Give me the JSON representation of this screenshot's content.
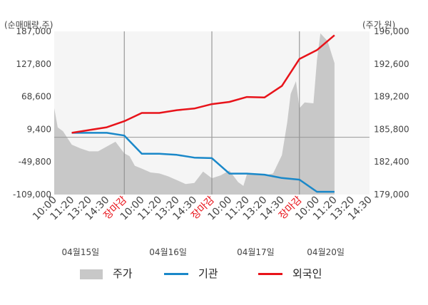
{
  "chart_data": {
    "type": "line",
    "unit_left": "(순매매량,주)",
    "unit_right": "(주가,원)",
    "left_axis": {
      "min": -109000,
      "max": 187000,
      "ticks": [
        "187,000",
        "127,800",
        "68,600",
        "9,400",
        "-49,800",
        "-109,000"
      ]
    },
    "right_axis": {
      "min": 179000,
      "max": 196000,
      "ticks": [
        "196,000",
        "192,600",
        "189,200",
        "185,800",
        "182,400",
        "179,000"
      ]
    },
    "x_ticks": [
      {
        "label": "10:00",
        "red": false
      },
      {
        "label": "11:20",
        "red": false
      },
      {
        "label": "13:20",
        "red": false
      },
      {
        "label": "14:30",
        "red": false
      },
      {
        "label": "장마감",
        "red": true
      },
      {
        "label": "10:00",
        "red": false
      },
      {
        "label": "11:20",
        "red": false
      },
      {
        "label": "13:20",
        "red": false
      },
      {
        "label": "14:30",
        "red": false
      },
      {
        "label": "장마감",
        "red": true
      },
      {
        "label": "10:00",
        "red": false
      },
      {
        "label": "11:20",
        "red": false
      },
      {
        "label": "13:20",
        "red": false
      },
      {
        "label": "14:30",
        "red": false
      },
      {
        "label": "장마감",
        "red": true
      },
      {
        "label": "10:00",
        "red": false
      },
      {
        "label": "11:20",
        "red": false
      },
      {
        "label": "13:20",
        "red": false
      },
      {
        "label": "14:30",
        "red": false
      }
    ],
    "day_labels": [
      {
        "label": "04월15일",
        "index": 1.5
      },
      {
        "label": "04월16일",
        "index": 6.5
      },
      {
        "label": "04월17일",
        "index": 11.5
      },
      {
        "label": "04월20일",
        "index": 15.5
      }
    ],
    "series": [
      {
        "name": "기관",
        "color": "#1a88c9",
        "axis": "left",
        "points": [
          [
            1,
            3000
          ],
          [
            3,
            3000
          ],
          [
            4,
            -2000
          ],
          [
            5,
            -35000
          ],
          [
            6,
            -35000
          ],
          [
            7,
            -37000
          ],
          [
            8,
            -42000
          ],
          [
            9,
            -43000
          ],
          [
            10,
            -71000
          ],
          [
            11,
            -71000
          ],
          [
            12,
            -73000
          ],
          [
            13,
            -79000
          ],
          [
            14,
            -82000
          ],
          [
            15,
            -104000
          ],
          [
            16,
            -104000
          ]
        ]
      },
      {
        "name": "외국인",
        "color": "#e8131a",
        "axis": "left",
        "points": [
          [
            1,
            3000
          ],
          [
            2,
            8000
          ],
          [
            3,
            13000
          ],
          [
            4,
            24000
          ],
          [
            5,
            39000
          ],
          [
            6,
            39000
          ],
          [
            7,
            44000
          ],
          [
            8,
            47000
          ],
          [
            9,
            55000
          ],
          [
            10,
            59000
          ],
          [
            11,
            68000
          ],
          [
            12,
            67000
          ],
          [
            13,
            88000
          ],
          [
            14,
            137000
          ],
          [
            15,
            153000
          ],
          [
            16,
            180000
          ]
        ]
      }
    ],
    "price": {
      "name": "주가",
      "color": "#c8c8c8",
      "axis": "right",
      "points": [
        [
          0,
          188000
        ],
        [
          0.2,
          186000
        ],
        [
          0.5,
          185600
        ],
        [
          1,
          184200
        ],
        [
          1.5,
          183800
        ],
        [
          2,
          183500
        ],
        [
          2.5,
          183500
        ],
        [
          3,
          184000
        ],
        [
          3.5,
          184500
        ],
        [
          4,
          183300
        ],
        [
          4.3,
          183000
        ],
        [
          4.6,
          182000
        ],
        [
          5,
          181700
        ],
        [
          5.5,
          181300
        ],
        [
          6,
          181200
        ],
        [
          6.5,
          180900
        ],
        [
          7,
          180500
        ],
        [
          7.5,
          180100
        ],
        [
          8,
          180200
        ],
        [
          8.5,
          181400
        ],
        [
          9,
          180700
        ],
        [
          9.5,
          181000
        ],
        [
          10,
          181500
        ],
        [
          10.5,
          180300
        ],
        [
          10.8,
          179900
        ],
        [
          11,
          181100
        ],
        [
          11.5,
          181100
        ],
        [
          12,
          181000
        ],
        [
          12.5,
          181200
        ],
        [
          13,
          183100
        ],
        [
          13.3,
          186500
        ],
        [
          13.5,
          189500
        ],
        [
          13.8,
          190800
        ],
        [
          14,
          188000
        ],
        [
          14.3,
          188600
        ],
        [
          14.8,
          188500
        ],
        [
          15,
          193000
        ],
        [
          15.2,
          195800
        ],
        [
          15.6,
          195000
        ],
        [
          16,
          192700
        ]
      ]
    }
  },
  "legend": [
    {
      "label": "주가",
      "kind": "area",
      "color": "#c8c8c8"
    },
    {
      "label": "기관",
      "kind": "line",
      "color": "#1a88c9"
    },
    {
      "label": "외국인",
      "kind": "line",
      "color": "#e8131a"
    }
  ]
}
